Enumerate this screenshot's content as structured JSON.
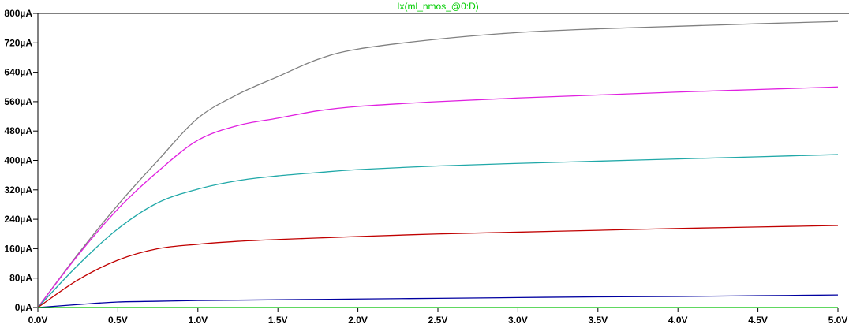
{
  "chart_data": {
    "type": "line",
    "title": "Ix(ml_nmos_@0:D)",
    "xlabel": "",
    "ylabel": "",
    "xlim": [
      0,
      5
    ],
    "ylim": [
      0,
      800
    ],
    "grid": false,
    "x_ticks": [
      "0.0V",
      "0.5V",
      "1.0V",
      "1.5V",
      "2.0V",
      "2.5V",
      "3.0V",
      "3.5V",
      "4.0V",
      "4.5V",
      "5.0V"
    ],
    "x_tick_values": [
      0,
      0.5,
      1,
      1.5,
      2,
      2.5,
      3,
      3.5,
      4,
      4.5,
      5
    ],
    "y_ticks": [
      "0µA",
      "80µA",
      "160µA",
      "240µA",
      "320µA",
      "400µA",
      "480µA",
      "560µA",
      "640µA",
      "720µA",
      "800µA"
    ],
    "y_tick_values": [
      0,
      80,
      160,
      240,
      320,
      400,
      480,
      560,
      640,
      720,
      800
    ],
    "x": [
      0,
      0.25,
      0.5,
      0.75,
      1,
      1.25,
      1.5,
      1.75,
      2,
      2.5,
      3,
      3.5,
      4,
      4.5,
      5
    ],
    "series": [
      {
        "color": "#808080",
        "values": [
          0,
          145,
          279,
          400,
          515,
          580,
          628,
          675,
          703,
          730,
          748,
          758,
          765,
          772,
          778
        ]
      },
      {
        "color": "#e020e0",
        "values": [
          0,
          142,
          268,
          370,
          455,
          495,
          515,
          535,
          547,
          560,
          570,
          578,
          586,
          593,
          600
        ]
      },
      {
        "color": "#20a8a8",
        "values": [
          0,
          115,
          214,
          285,
          322,
          345,
          358,
          367,
          375,
          385,
          392,
          398,
          404,
          410,
          416
        ]
      },
      {
        "color": "#c00000",
        "values": [
          0,
          75,
          129,
          160,
          172,
          180,
          185,
          189,
          193,
          200,
          205,
          210,
          215,
          219,
          223
        ]
      },
      {
        "color": "#0000a0",
        "values": [
          0,
          8,
          15,
          17,
          19,
          20,
          21,
          22,
          23,
          25,
          27,
          29,
          30,
          32,
          34
        ]
      },
      {
        "color": "#00c000",
        "values": [
          0,
          0,
          0,
          0,
          0,
          0,
          0,
          0,
          0,
          0,
          0,
          0,
          0,
          0,
          0
        ]
      }
    ]
  }
}
